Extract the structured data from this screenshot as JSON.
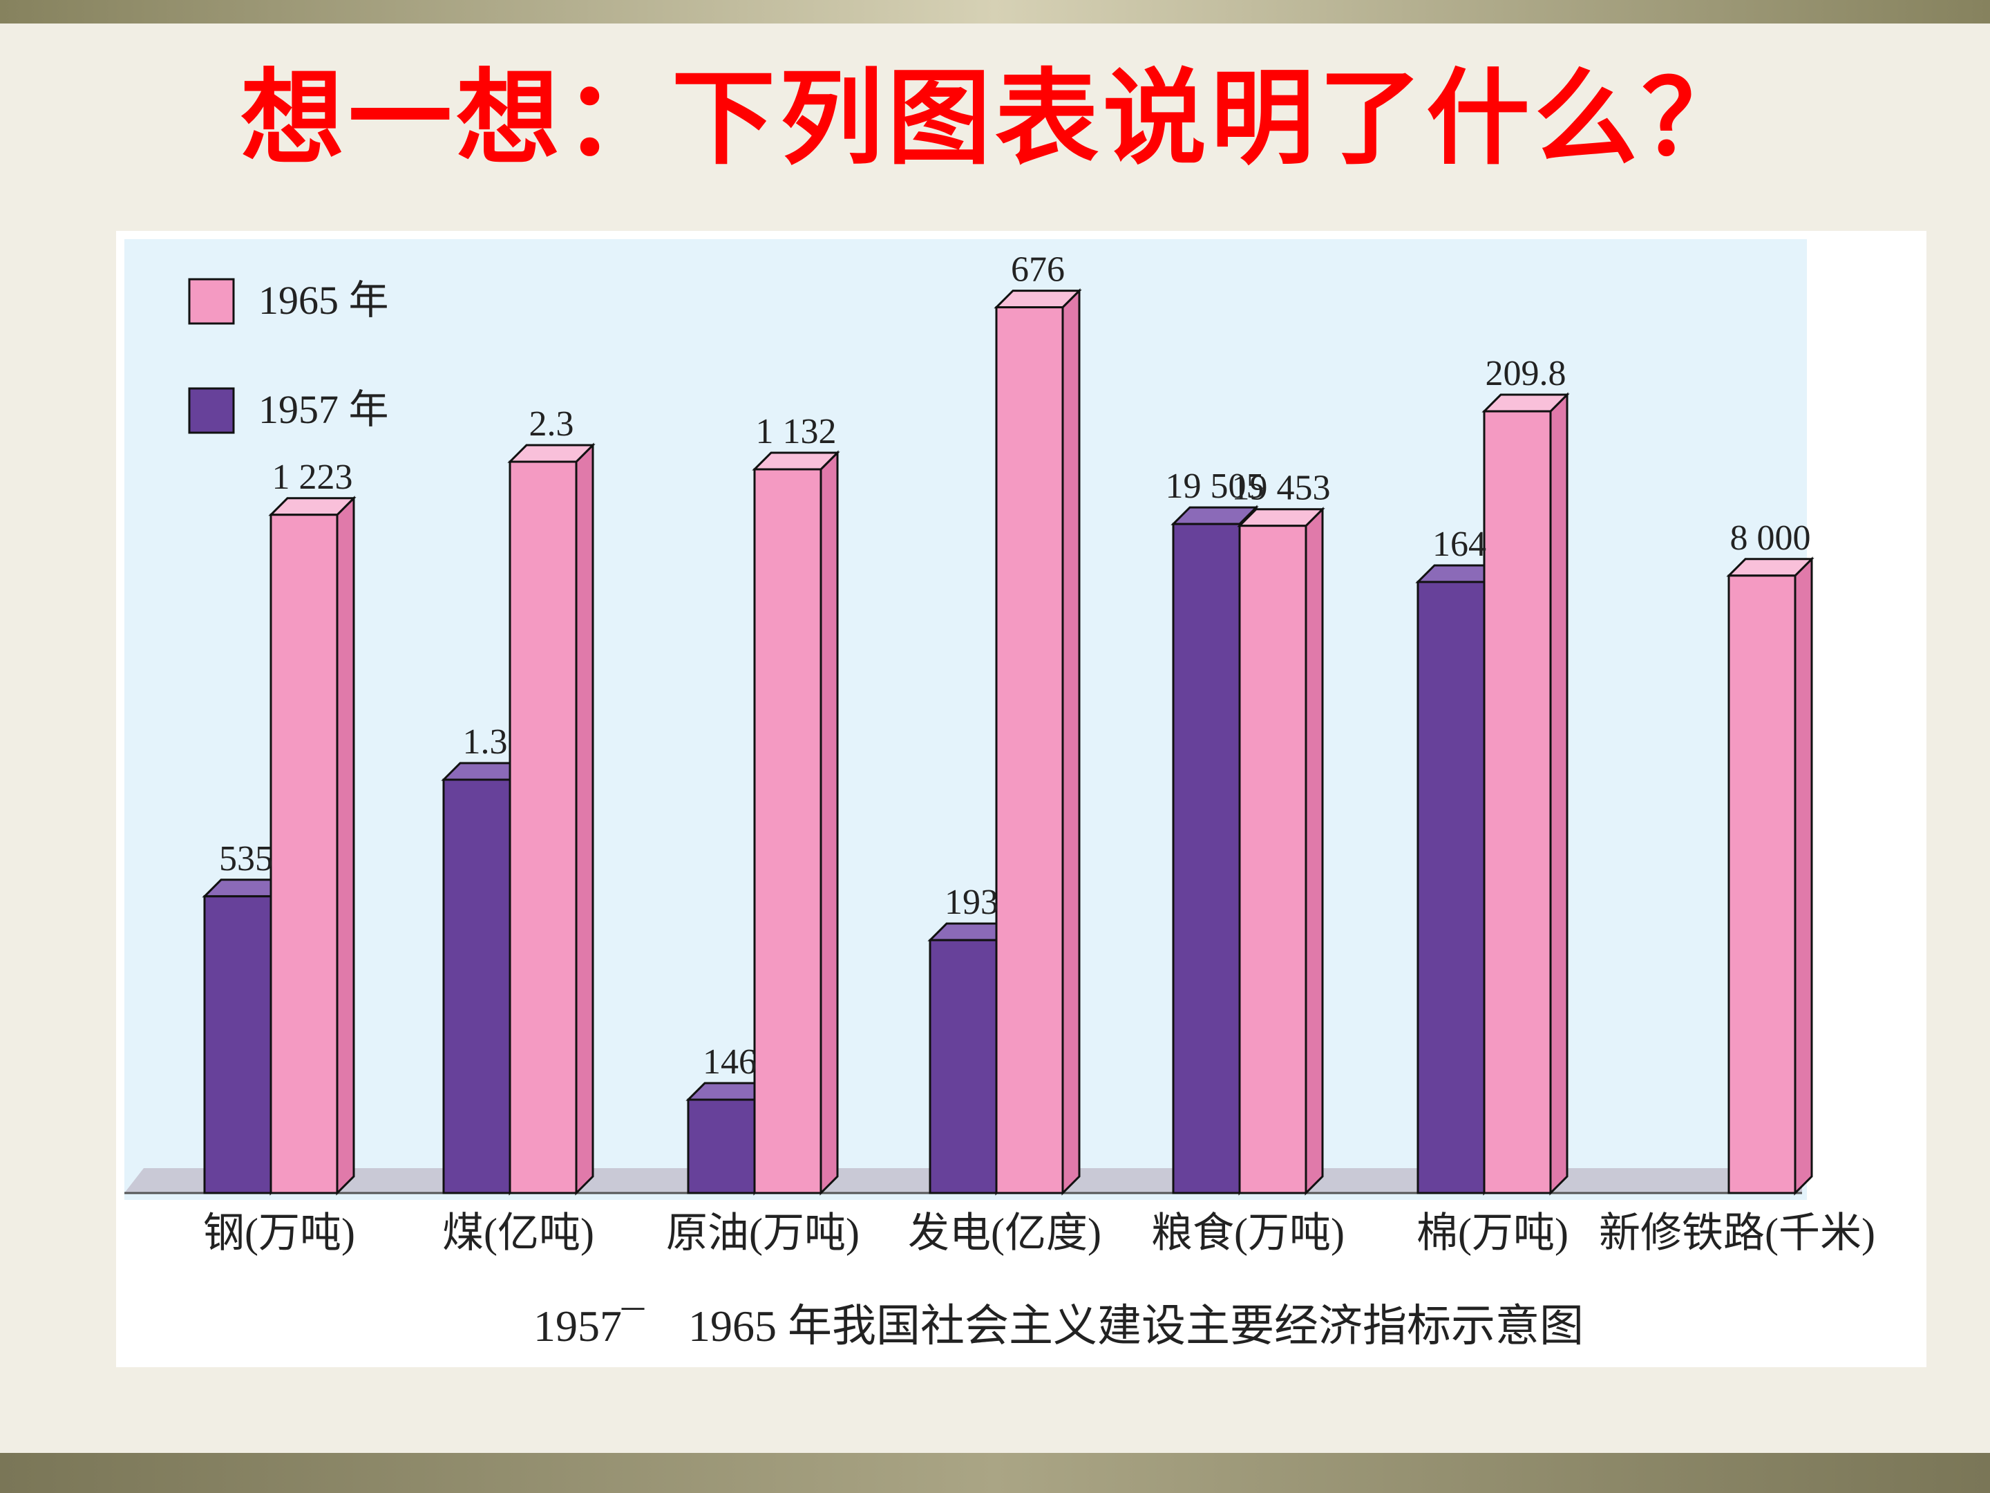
{
  "slide": {
    "heading": "想一想：下列图表说明了什么？"
  },
  "chart_data": {
    "type": "bar",
    "title": "1957¯　1965 年我国社会主义建设主要经济指标示意图",
    "categories": [
      "钢(万吨)",
      "煤(亿吨)",
      "原油(万吨)",
      "发电(亿度)",
      "粮食(万吨)",
      "棉(万吨)",
      "新修铁路(千米)"
    ],
    "series": [
      {
        "name": "1957 年",
        "color": "#67419a",
        "values": [
          535,
          1.3,
          146,
          193,
          19505,
          164,
          null
        ],
        "labels": [
          "535",
          "1.3",
          "146",
          "193",
          "19 505",
          "164",
          ""
        ]
      },
      {
        "name": "1965 年",
        "color": "#f49ac2",
        "values": [
          1223,
          2.3,
          1132,
          676,
          19453,
          209.8,
          8000
        ],
        "labels": [
          "1 223",
          "2.3",
          "1 132",
          "676",
          "19 453",
          "209.8",
          "8 000"
        ]
      }
    ],
    "ylim_per_category": [
      [
        0,
        1720
      ],
      [
        0,
        3.0
      ],
      [
        0,
        1492
      ],
      [
        0,
        728
      ],
      [
        0,
        27810
      ],
      [
        0,
        256
      ],
      [
        0,
        12360
      ]
    ],
    "legend_position": "top-left",
    "grid": false,
    "background_color": "#e4f3fb"
  }
}
